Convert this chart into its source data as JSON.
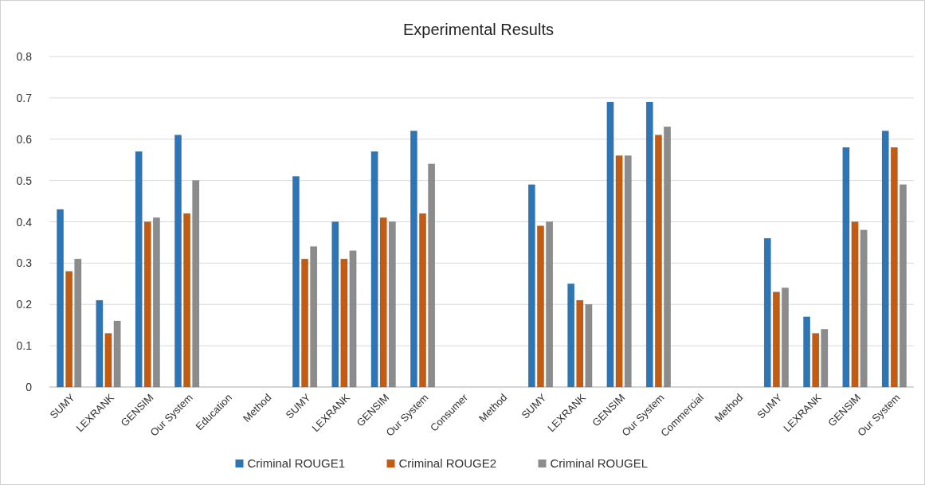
{
  "chart_data": {
    "type": "bar",
    "title": "Experimental Results",
    "categories": [
      "SUMY",
      "LEXRANK",
      "GENSIM",
      "Our System",
      "Education",
      "Method",
      "SUMY",
      "LEXRANK",
      "GENSIM",
      "Our System",
      "Consumer",
      "Method",
      "SUMY",
      "LEXRANK",
      "GENSIM",
      "Our System",
      "Commercial",
      "Method",
      "SUMY",
      "LEXRANK",
      "GENSIM",
      "Our System"
    ],
    "series": [
      {
        "name": "Criminal ROUGE1",
        "color": "#2e75b6",
        "values": [
          0.43,
          0.21,
          0.57,
          0.61,
          null,
          null,
          0.51,
          0.4,
          0.57,
          0.62,
          null,
          null,
          0.49,
          0.25,
          0.69,
          0.69,
          null,
          null,
          0.36,
          0.17,
          0.58,
          0.62
        ]
      },
      {
        "name": "Criminal ROUGE2",
        "color": "#c55a11",
        "values": [
          0.28,
          0.13,
          0.4,
          0.42,
          null,
          null,
          0.31,
          0.31,
          0.41,
          0.42,
          null,
          null,
          0.39,
          0.21,
          0.56,
          0.61,
          null,
          null,
          0.23,
          0.13,
          0.4,
          0.58
        ]
      },
      {
        "name": "Criminal ROUGEL",
        "color": "#8c8c8c",
        "values": [
          0.31,
          0.16,
          0.41,
          0.5,
          null,
          null,
          0.34,
          0.33,
          0.4,
          0.54,
          null,
          null,
          0.4,
          0.2,
          0.56,
          0.63,
          null,
          null,
          0.24,
          0.14,
          0.38,
          0.49
        ]
      }
    ],
    "ylim": [
      0,
      0.8
    ],
    "yticks": [
      {
        "value": 0,
        "label": "0"
      },
      {
        "value": 0.1,
        "label": "0.1"
      },
      {
        "value": 0.2,
        "label": "0.2"
      },
      {
        "value": 0.3,
        "label": "0.3"
      },
      {
        "value": 0.4,
        "label": "0.4"
      },
      {
        "value": 0.5,
        "label": "0.5"
      },
      {
        "value": 0.6,
        "label": "0.6"
      },
      {
        "value": 0.7,
        "label": "0.7"
      },
      {
        "value": 0.8,
        "label": "0.8"
      }
    ],
    "grid": "y",
    "legend": "bottom"
  }
}
